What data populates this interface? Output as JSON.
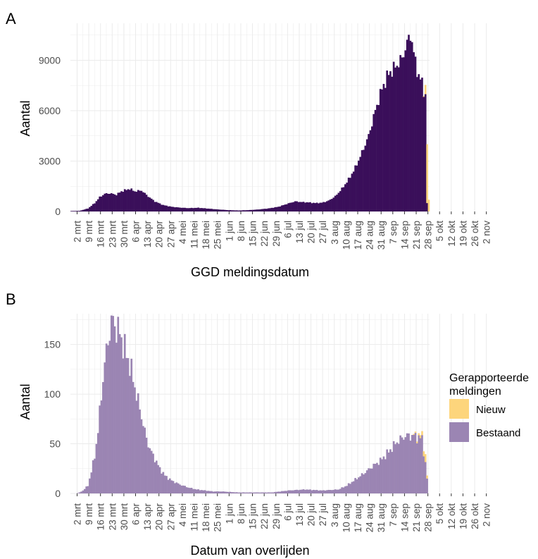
{
  "figure": {
    "panel_labels": [
      "A",
      "B"
    ],
    "legend": {
      "title_lines": [
        "Gerapporteerde",
        "meldingen"
      ],
      "items": [
        "Nieuw",
        "Bestaand"
      ]
    }
  },
  "colors": {
    "panel_a_bestaand": "#3a0f5a",
    "panel_b_bestaand": "#9b85b3",
    "nieuw": "#fdd57c",
    "grid": "#ebebeb",
    "text": "#4d4d4d"
  },
  "chart_data": [
    {
      "type": "bar",
      "stacked": true,
      "panel": "A",
      "xlabel": "GGD meldingsdatum",
      "ylabel": "Aantal",
      "ylim": [
        0,
        11200
      ],
      "y_ticks": [
        0,
        3000,
        6000,
        9000
      ],
      "x_tick_labels": [
        "2 mrt",
        "9 mrt",
        "16 mrt",
        "23 mrt",
        "30 mrt",
        "6 apr",
        "13 apr",
        "20 apr",
        "27 apr",
        "4 mei",
        "11 mei",
        "18 mei",
        "25 mei",
        "1 jun",
        "8 jun",
        "15 jun",
        "22 jun",
        "29 jun",
        "6 jul",
        "13 jul",
        "20 jul",
        "27 jul",
        "3 aug",
        "10 aug",
        "17 aug",
        "24 aug",
        "31 aug",
        "7 sep",
        "14 sep",
        "21 sep",
        "28 sep",
        "5 okt",
        "12 okt",
        "19 okt",
        "26 okt",
        "2 nov"
      ],
      "x_start": "2020-02-27",
      "daily_points": [
        [
          0,
          30
        ],
        [
          5,
          40
        ],
        [
          10,
          180
        ],
        [
          14,
          500
        ],
        [
          17,
          850
        ],
        [
          20,
          1050
        ],
        [
          23,
          1080
        ],
        [
          27,
          1000
        ],
        [
          30,
          1200
        ],
        [
          35,
          1350
        ],
        [
          38,
          1200
        ],
        [
          42,
          1250
        ],
        [
          46,
          900
        ],
        [
          50,
          600
        ],
        [
          55,
          380
        ],
        [
          60,
          280
        ],
        [
          65,
          230
        ],
        [
          70,
          200
        ],
        [
          76,
          220
        ],
        [
          82,
          170
        ],
        [
          88,
          120
        ],
        [
          94,
          80
        ],
        [
          100,
          60
        ],
        [
          106,
          80
        ],
        [
          112,
          120
        ],
        [
          118,
          180
        ],
        [
          124,
          280
        ],
        [
          130,
          480
        ],
        [
          134,
          600
        ],
        [
          138,
          560
        ],
        [
          142,
          540
        ],
        [
          146,
          500
        ],
        [
          150,
          520
        ],
        [
          154,
          640
        ],
        [
          158,
          900
        ],
        [
          162,
          1350
        ],
        [
          166,
          1900
        ],
        [
          170,
          2600
        ],
        [
          174,
          3500
        ],
        [
          178,
          4500
        ],
        [
          182,
          6000
        ],
        [
          186,
          7300
        ],
        [
          190,
          8200
        ],
        [
          194,
          8600
        ],
        [
          198,
          9100
        ],
        [
          200,
          9700
        ],
        [
          203,
          10600
        ],
        [
          205,
          9400
        ],
        [
          208,
          8000
        ],
        [
          210,
          7700
        ],
        [
          212,
          6800
        ],
        [
          213,
          500
        ]
      ],
      "nieuw_points": [
        [
          211,
          50
        ],
        [
          212,
          550
        ],
        [
          213,
          3500
        ],
        [
          214,
          700
        ]
      ],
      "series": [
        {
          "name": "Bestaand",
          "color": "#3a0f5a"
        },
        {
          "name": "Nieuw",
          "color": "#fdd57c"
        }
      ],
      "grid": true
    },
    {
      "type": "bar",
      "stacked": true,
      "panel": "B",
      "xlabel": "Datum van overlijden",
      "ylabel": "Aantal",
      "ylim": [
        0,
        181
      ],
      "y_ticks": [
        0,
        50,
        100,
        150
      ],
      "x_tick_labels": [
        "2 mrt",
        "9 mrt",
        "16 mrt",
        "23 mrt",
        "30 mrt",
        "6 apr",
        "13 apr",
        "20 apr",
        "27 apr",
        "4 mei",
        "11 mei",
        "18 mei",
        "25 mei",
        "1 jun",
        "8 jun",
        "15 jun",
        "22 jun",
        "29 jun",
        "6 jul",
        "13 jul",
        "20 jul",
        "27 jul",
        "3 aug",
        "10 aug",
        "17 aug",
        "24 aug",
        "31 aug",
        "7 sep",
        "14 sep",
        "21 sep",
        "28 sep",
        "5 okt",
        "12 okt",
        "19 okt",
        "26 okt",
        "2 nov"
      ],
      "x_start": "2020-02-27",
      "daily_points": [
        [
          0,
          0
        ],
        [
          3,
          0
        ],
        [
          5,
          1
        ],
        [
          7,
          3
        ],
        [
          10,
          8
        ],
        [
          12,
          22
        ],
        [
          14,
          38
        ],
        [
          16,
          62
        ],
        [
          18,
          100
        ],
        [
          20,
          130
        ],
        [
          22,
          155
        ],
        [
          24,
          170
        ],
        [
          25,
          175
        ],
        [
          27,
          165
        ],
        [
          29,
          162
        ],
        [
          31,
          150
        ],
        [
          33,
          140
        ],
        [
          35,
          130
        ],
        [
          37,
          115
        ],
        [
          39,
          100
        ],
        [
          41,
          85
        ],
        [
          43,
          70
        ],
        [
          45,
          55
        ],
        [
          47,
          45
        ],
        [
          50,
          35
        ],
        [
          53,
          25
        ],
        [
          56,
          18
        ],
        [
          60,
          13
        ],
        [
          65,
          9
        ],
        [
          70,
          6
        ],
        [
          75,
          4
        ],
        [
          80,
          3
        ],
        [
          85,
          2
        ],
        [
          90,
          2
        ],
        [
          100,
          1
        ],
        [
          110,
          1
        ],
        [
          120,
          1
        ],
        [
          130,
          3
        ],
        [
          140,
          4
        ],
        [
          150,
          3
        ],
        [
          160,
          4
        ],
        [
          165,
          8
        ],
        [
          170,
          14
        ],
        [
          175,
          20
        ],
        [
          180,
          27
        ],
        [
          185,
          33
        ],
        [
          190,
          42
        ],
        [
          195,
          52
        ],
        [
          200,
          58
        ],
        [
          205,
          58
        ],
        [
          210,
          55
        ],
        [
          212,
          30
        ],
        [
          213,
          15
        ]
      ],
      "nieuw_points": [
        [
          205,
          1
        ],
        [
          208,
          2
        ],
        [
          211,
          5
        ],
        [
          212,
          8
        ],
        [
          213,
          3
        ]
      ],
      "series": [
        {
          "name": "Bestaand",
          "color": "#9b85b3"
        },
        {
          "name": "Nieuw",
          "color": "#fdd57c"
        }
      ],
      "grid": true
    }
  ]
}
